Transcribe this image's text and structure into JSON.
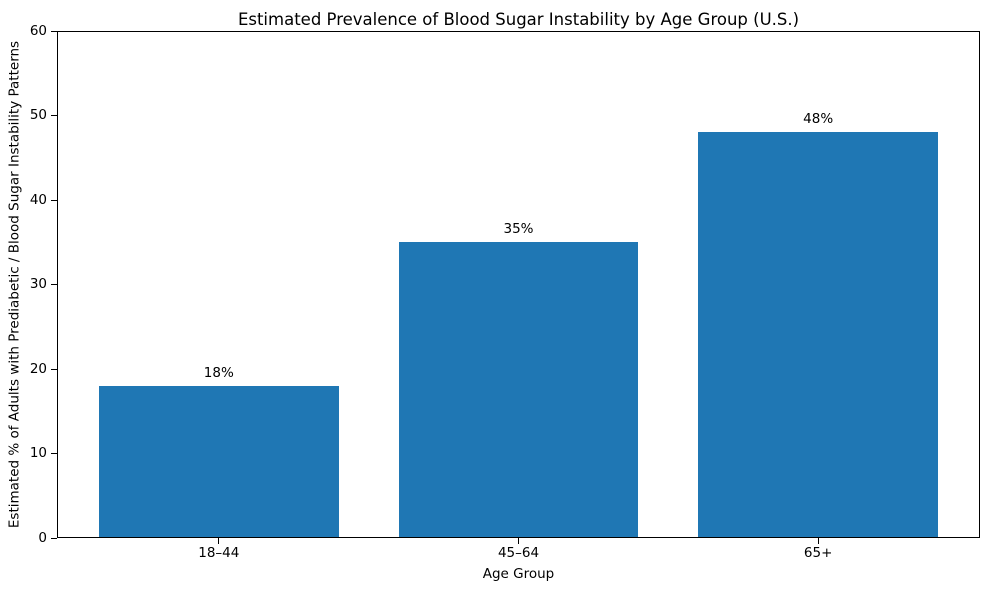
{
  "chart_data": {
    "type": "bar",
    "title": "Estimated Prevalence of Blood Sugar Instability by Age Group (U.S.)",
    "xlabel": "Age Group",
    "ylabel": "Estimated % of Adults with Prediabetic / Blood Sugar Instability Patterns",
    "categories": [
      "18–44",
      "45–64",
      "65+"
    ],
    "values": [
      18,
      35,
      48
    ],
    "value_labels": [
      "18%",
      "35%",
      "48%"
    ],
    "yticks": [
      0,
      10,
      20,
      30,
      40,
      50,
      60
    ],
    "ylim": [
      0,
      60
    ],
    "xlim": [
      -0.54,
      2.54
    ],
    "bar_width": 0.8,
    "bar_color": "#1f77b4",
    "spine_color": "#000000",
    "grid": false,
    "legend": false
  }
}
